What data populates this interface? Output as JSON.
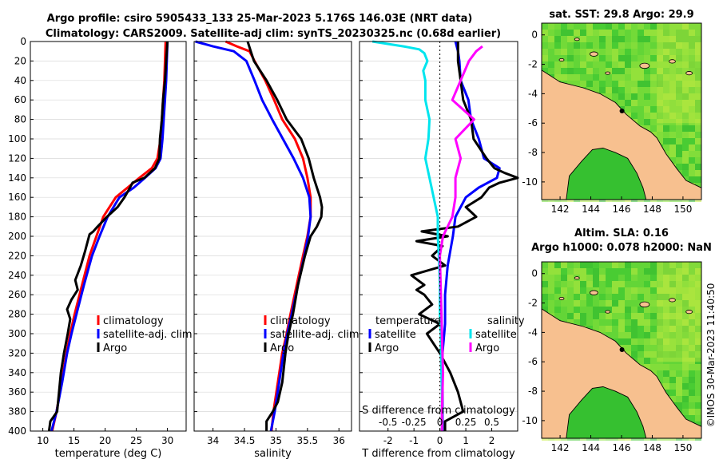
{
  "figure": {
    "title_line1": "Argo profile: csiro 5905433_133 25-Mar-2023 5.176S 146.03E (NRT data)",
    "title_line2": "Climatology: CARS2009. Satellite-adj clim: synTS_20230325.nc (0.68d earlier)",
    "footer": "©IMOS 30-Mar-2023 11:40:50"
  },
  "colors": {
    "red": "#ff0000",
    "blue": "#0000ff",
    "black": "#000000",
    "cyan": "#00e5ee",
    "magenta": "#ff00ff",
    "land": "#f7c08f"
  },
  "chart_data": [
    {
      "type": "line",
      "name": "temperature",
      "xlabel": "temperature (deg C)",
      "xlim": [
        8,
        33
      ],
      "ylim": [
        0,
        400
      ],
      "xticks": [
        10,
        15,
        20,
        25,
        30
      ],
      "xtick_labels": [
        "10",
        "15",
        "20",
        "25",
        "30"
      ],
      "yticks": [
        0,
        20,
        40,
        60,
        80,
        100,
        120,
        140,
        160,
        180,
        200,
        220,
        240,
        260,
        280,
        300,
        320,
        340,
        360,
        380,
        400
      ],
      "ytick_labels": [
        "0",
        "20",
        "40",
        "60",
        "80",
        "100",
        "120",
        "140",
        "160",
        "180",
        "200",
        "220",
        "240",
        "260",
        "280",
        "300",
        "320",
        "340",
        "360",
        "380",
        "400"
      ],
      "legend": [
        "climatology",
        "satellite-adj. clim",
        "Argo"
      ],
      "series": [
        {
          "name": "climatology",
          "color": "#ff0000",
          "depth": [
            0,
            20,
            40,
            60,
            80,
            100,
            120,
            130,
            140,
            150,
            160,
            180,
            200,
            220,
            250,
            280,
            300,
            320,
            350,
            380,
            400
          ],
          "values": [
            29.7,
            29.6,
            29.5,
            29.3,
            29.1,
            28.9,
            28.4,
            27.5,
            25.5,
            23.6,
            21.7,
            19.7,
            18.6,
            17.5,
            16.3,
            15.1,
            14.4,
            13.8,
            13.0,
            12.2,
            11.5
          ]
        },
        {
          "name": "satellite-adj. clim",
          "color": "#0000ff",
          "depth": [
            0,
            20,
            40,
            60,
            80,
            100,
            120,
            130,
            140,
            150,
            160,
            180,
            200,
            220,
            250,
            280,
            300,
            320,
            350,
            380,
            400
          ],
          "values": [
            30.0,
            29.9,
            29.8,
            29.6,
            29.4,
            29.2,
            28.9,
            28.1,
            26.4,
            24.6,
            22.3,
            20.4,
            19.1,
            17.9,
            16.6,
            15.4,
            14.6,
            13.9,
            13.1,
            12.2,
            11.4
          ]
        },
        {
          "name": "Argo",
          "color": "#000000",
          "depth": [
            0,
            20,
            40,
            60,
            80,
            100,
            120,
            130,
            140,
            145,
            150,
            160,
            170,
            180,
            190,
            195,
            198,
            205,
            215,
            230,
            245,
            255,
            265,
            275,
            285,
            300,
            320,
            340,
            360,
            380,
            390,
            400
          ],
          "values": [
            30.0,
            29.8,
            29.6,
            29.3,
            29.1,
            28.8,
            28.7,
            28.0,
            26.3,
            24.4,
            24.0,
            23.1,
            22.0,
            20.3,
            18.8,
            18.1,
            17.5,
            17.2,
            16.8,
            16.1,
            15.2,
            15.6,
            14.6,
            13.9,
            14.4,
            14.0,
            13.4,
            12.9,
            12.6,
            12.3,
            11.2,
            11.0
          ]
        }
      ]
    },
    {
      "type": "line",
      "name": "salinity",
      "xlabel": "salinity",
      "xlim": [
        33.7,
        36.2
      ],
      "ylim": [
        0,
        400
      ],
      "xticks": [
        34,
        34.5,
        35,
        35.5,
        36
      ],
      "xtick_labels": [
        "34",
        "34.5",
        "35",
        "35.5",
        "36"
      ],
      "legend": [
        "climatology",
        "satellite-adj. clim",
        "Argo"
      ],
      "series": [
        {
          "name": "climatology",
          "color": "#ff0000",
          "depth": [
            0,
            5,
            10,
            20,
            40,
            60,
            80,
            100,
            120,
            140,
            160,
            180,
            200,
            220,
            250,
            280,
            300,
            320,
            350,
            380,
            400
          ],
          "values": [
            34.2,
            34.38,
            34.58,
            34.66,
            34.83,
            34.97,
            35.1,
            35.3,
            35.43,
            35.5,
            35.55,
            35.55,
            35.5,
            35.43,
            35.33,
            35.23,
            35.17,
            35.1,
            35.03,
            34.96,
            34.93
          ]
        },
        {
          "name": "satellite-adj. clim",
          "color": "#0000ff",
          "depth": [
            0,
            5,
            10,
            20,
            40,
            60,
            80,
            100,
            120,
            140,
            160,
            180,
            200,
            220,
            250,
            280,
            300,
            320,
            350,
            380,
            400
          ],
          "values": [
            33.72,
            34.0,
            34.33,
            34.53,
            34.66,
            34.78,
            34.94,
            35.11,
            35.28,
            35.43,
            35.53,
            35.55,
            35.51,
            35.45,
            35.35,
            35.25,
            35.18,
            35.12,
            35.05,
            34.98,
            34.92
          ]
        },
        {
          "name": "Argo",
          "color": "#000000",
          "depth": [
            0,
            10,
            20,
            40,
            60,
            80,
            100,
            120,
            140,
            160,
            170,
            180,
            190,
            200,
            220,
            250,
            280,
            300,
            320,
            350,
            370,
            380,
            390,
            400
          ],
          "values": [
            34.55,
            34.6,
            34.65,
            34.85,
            35.02,
            35.17,
            35.4,
            35.52,
            35.6,
            35.7,
            35.73,
            35.72,
            35.65,
            35.55,
            35.46,
            35.35,
            35.27,
            35.2,
            35.15,
            35.1,
            35.03,
            34.95,
            34.85,
            34.85
          ]
        }
      ]
    },
    {
      "type": "line",
      "name": "difference from climatology",
      "xlabel": "T difference from climatology",
      "xlabel_top": "S difference from climatology",
      "xlim": [
        -3.1,
        3.0
      ],
      "ylim": [
        0,
        400
      ],
      "xticks": [
        -2,
        -1,
        0,
        1,
        2
      ],
      "xtick_labels": [
        "-2",
        "-1",
        "0",
        "1",
        "2"
      ],
      "top_ticks": [
        -0.5,
        -0.25,
        0,
        0.25,
        0.5
      ],
      "top_tick_labels": [
        "-0.5",
        "-0.25",
        "0",
        "0.25",
        "0.5"
      ],
      "legend_T_title": "temperature",
      "legend_S_title": "salinity",
      "legend_T": [
        "satellite",
        "Argo"
      ],
      "legend_S": [
        "satellite",
        "Argo"
      ],
      "series": [
        {
          "name": "T satellite",
          "color": "#0000ff",
          "depth": [
            0,
            10,
            20,
            40,
            60,
            80,
            100,
            120,
            130,
            140,
            150,
            160,
            180,
            200,
            230,
            260,
            290,
            320,
            350,
            380,
            400
          ],
          "values": [
            0.6,
            0.7,
            0.75,
            0.8,
            1.1,
            1.2,
            1.5,
            1.7,
            2.3,
            2.2,
            1.5,
            1.0,
            0.6,
            0.5,
            0.3,
            0.2,
            0.2,
            0.1,
            0.1,
            0.1,
            0.1
          ]
        },
        {
          "name": "Argo T",
          "color": "#000000",
          "depth": [
            0,
            20,
            40,
            60,
            80,
            100,
            120,
            130,
            135,
            140,
            145,
            150,
            160,
            170,
            180,
            190,
            195,
            200,
            205,
            210,
            220,
            230,
            240,
            250,
            255,
            260,
            270,
            280,
            290,
            300,
            320,
            340,
            360,
            380,
            390,
            400
          ],
          "values": [
            0.7,
            0.7,
            0.8,
            0.9,
            1.2,
            1.3,
            1.8,
            2.1,
            2.5,
            3.0,
            2.3,
            1.9,
            1.6,
            1.0,
            1.4,
            0.7,
            -0.7,
            0.3,
            -0.9,
            0.1,
            -0.3,
            0.2,
            -1.1,
            -0.6,
            -0.9,
            -0.6,
            -0.3,
            -0.8,
            0.0,
            -0.5,
            0.0,
            0.4,
            0.7,
            0.9,
            0.2,
            0.2
          ]
        },
        {
          "name": "S satellite",
          "color": "#00e5ee",
          "depth": [
            0,
            5,
            8,
            12,
            20,
            30,
            40,
            60,
            80,
            100,
            120,
            140,
            160,
            180,
            200,
            220,
            250,
            280,
            300,
            320,
            360,
            400
          ],
          "values": [
            -0.65,
            -0.35,
            -0.2,
            -0.15,
            -0.12,
            -0.16,
            -0.14,
            -0.14,
            -0.1,
            -0.11,
            -0.14,
            -0.1,
            -0.06,
            -0.02,
            -0.02,
            -0.01,
            0,
            0,
            0.01,
            0.01,
            0.02,
            0.02
          ]
        },
        {
          "name": "S Argo",
          "color": "#ff00ff",
          "depth": [
            5,
            10,
            20,
            40,
            60,
            80,
            100,
            120,
            140,
            160,
            180,
            200,
            220,
            260,
            300,
            340,
            380,
            400
          ],
          "values": [
            0.41,
            0.35,
            0.28,
            0.2,
            0.12,
            0.33,
            0.15,
            0.2,
            0.15,
            0.15,
            0.12,
            0.03,
            0.0,
            0.01,
            0.02,
            0.03,
            0.02,
            0.02
          ]
        }
      ]
    },
    {
      "type": "heatmap",
      "name": "sst-map",
      "title": "sat. SST: 29.8 Argo: 29.9",
      "xticks": [
        142,
        144,
        146,
        148,
        150
      ],
      "xtick_labels": [
        "142",
        "144",
        "146",
        "148",
        "150"
      ],
      "yticks": [
        0,
        -2,
        -4,
        -6,
        -8,
        -10
      ],
      "ytick_labels": [
        "0",
        "-2",
        "-4",
        "-6",
        "-8",
        "-10"
      ],
      "xlim": [
        140.8,
        151.2
      ],
      "ylim": [
        -11.2,
        0.8
      ],
      "argo_position": [
        146.03,
        -5.176
      ]
    },
    {
      "type": "heatmap",
      "name": "sla-map",
      "title_line1": "Altim. SLA: 0.16",
      "title_line2": "Argo h1000: 0.078 h2000: NaN",
      "xticks": [
        142,
        144,
        146,
        148,
        150
      ],
      "xtick_labels": [
        "142",
        "144",
        "146",
        "148",
        "150"
      ],
      "yticks": [
        0,
        -2,
        -4,
        -6,
        -8,
        -10
      ],
      "ytick_labels": [
        "0",
        "-2",
        "-4",
        "-6",
        "-8",
        "-10"
      ],
      "xlim": [
        140.8,
        151.2
      ],
      "ylim": [
        -11.2,
        0.8
      ],
      "argo_position": [
        146.03,
        -5.176
      ]
    }
  ]
}
